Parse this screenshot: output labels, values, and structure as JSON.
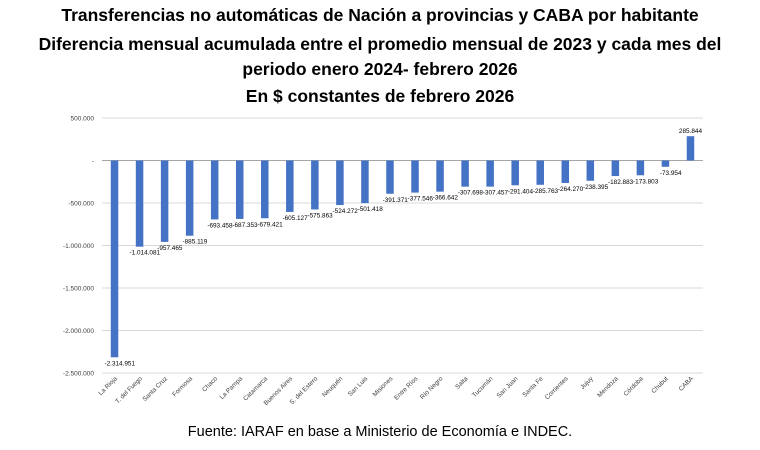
{
  "header": {
    "title_line1": "Transferencias no automáticas de Nación a provincias y CABA por habitante",
    "title_line2": "Diferencia mensual acumulada entre el promedio mensual de 2023 y cada mes del",
    "title_line3": "periodo enero 2024- febrero 2026",
    "title_line4": "En $ constantes de febrero 2026"
  },
  "footer": {
    "source": "Fuente: IARAF en base a Ministerio de Economía e INDEC."
  },
  "chart_data": {
    "type": "bar",
    "title": "Transferencias no automáticas de Nación a provincias y CABA por habitante. Diferencia mensual acumulada entre el promedio mensual de 2023 y cada mes del periodo enero 2024- febrero 2026. En $ constantes de febrero 2026",
    "xlabel": "",
    "ylabel": "",
    "ylim": [
      -2500000,
      500000
    ],
    "yticks": [
      500000,
      0,
      -500000,
      -1000000,
      -1500000,
      -2000000,
      -2500000
    ],
    "ytick_labels": [
      "500.000",
      "-",
      "-500.000",
      "-1.000.000",
      "-1.500.000",
      "-2.000.000",
      "-2.500.000"
    ],
    "grid": true,
    "bar_color": "#4472C4",
    "categories": [
      "La Rioja",
      "T. del Fuego",
      "Santa Cruz",
      "Formosa",
      "Chaco",
      "La Pampa",
      "Catamarca",
      "Buenos Aires",
      "S. del Estero",
      "Neuquén",
      "San Luis",
      "Misiones",
      "Entre Ríos",
      "Río Negro",
      "Salta",
      "Tucumán",
      "San Juan",
      "Santa Fe",
      "Corrientes",
      "Jujuy",
      "Mendoza",
      "Córdoba",
      "Chubut",
      "CABA"
    ],
    "values": [
      -2314951,
      -1014081,
      -957465,
      -885119,
      -693458,
      -687353,
      -679421,
      -605127,
      -575863,
      -524272,
      -501418,
      -391371,
      -377546,
      -366642,
      -307698,
      -307457,
      -291404,
      -285763,
      -264270,
      -238395,
      -182883,
      -173803,
      -73954,
      285844
    ],
    "value_labels": [
      "-2.314.951",
      "-1.014.081",
      "-957.465",
      "-885.119",
      "-693.458",
      "-687.353",
      "-679.421",
      "-605.127",
      "-575.863",
      "-524.272",
      "-501.418",
      "-391.371",
      "-377.546",
      "-366.642",
      "-307.698",
      "-307.457",
      "-291.404",
      "-285.763",
      "-264.270",
      "-238.395",
      "-182.883",
      "-173.803",
      "-73.954",
      "285.844"
    ]
  }
}
